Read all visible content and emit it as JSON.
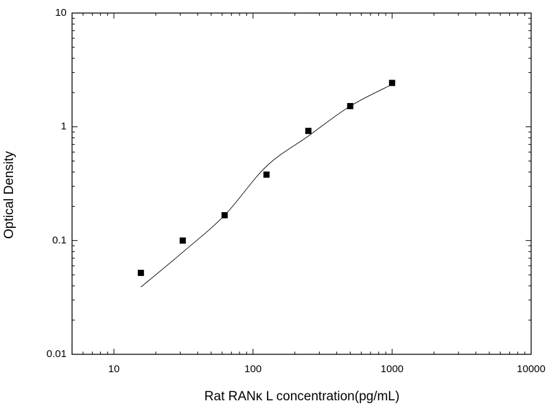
{
  "chart_data": {
    "type": "scatter",
    "x_label": "Rat RANκ L concentration(pg/mL)",
    "y_label": "Optical Density",
    "x": [
      15.625,
      31.25,
      62.5,
      125,
      250,
      500,
      1000
    ],
    "series": [
      {
        "style": "markers",
        "color": "#000000",
        "values": [
          0.052,
          0.1,
          0.167,
          0.38,
          0.92,
          1.52,
          2.43
        ]
      },
      {
        "style": "line",
        "color": "#000000",
        "values": [
          0.039,
          0.079,
          0.167,
          0.45,
          0.83,
          1.52,
          2.36
        ]
      }
    ],
    "xscale": "log",
    "yscale": "log",
    "xlim": [
      5,
      10000
    ],
    "ylim": [
      0.01,
      10
    ],
    "xticks": [
      10,
      100,
      1000,
      10000
    ],
    "yticks": [
      0.01,
      0.1,
      1,
      10
    ],
    "grid": false
  }
}
